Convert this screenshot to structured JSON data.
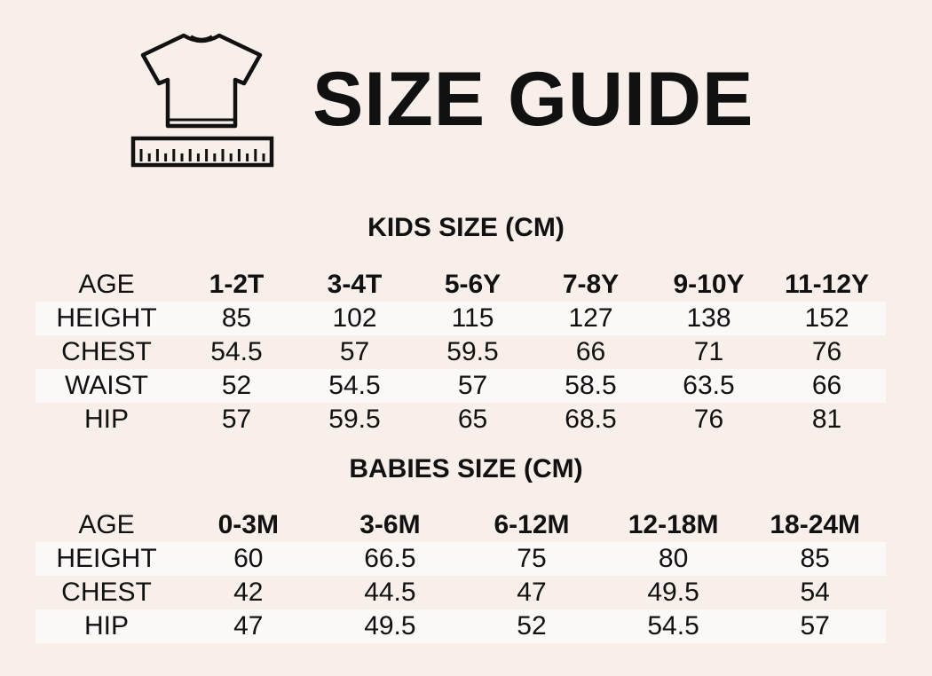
{
  "title": "SIZE GUIDE",
  "icons": {
    "header": "tshirt-with-ruler-icon"
  },
  "colors": {
    "background": "#f8efea",
    "row_shade": "#fbf8f7",
    "text": "#111111"
  },
  "kids": {
    "title": "KIDS SIZE (CM)",
    "header": {
      "label": "AGE",
      "sizes": [
        "1-2T",
        "3-4T",
        "5-6Y",
        "7-8Y",
        "9-10Y",
        "11-12Y"
      ]
    },
    "rows": [
      {
        "label": "HEIGHT",
        "values": [
          "85",
          "102",
          "115",
          "127",
          "138",
          "152"
        ]
      },
      {
        "label": "CHEST",
        "values": [
          "54.5",
          "57",
          "59.5",
          "66",
          "71",
          "76"
        ]
      },
      {
        "label": "WAIST",
        "values": [
          "52",
          "54.5",
          "57",
          "58.5",
          "63.5",
          "66"
        ]
      },
      {
        "label": "HIP",
        "values": [
          "57",
          "59.5",
          "65",
          "68.5",
          "76",
          "81"
        ]
      }
    ]
  },
  "babies": {
    "title": "BABIES SIZE (CM)",
    "header": {
      "label": "AGE",
      "sizes": [
        "0-3M",
        "3-6M",
        "6-12M",
        "12-18M",
        "18-24M"
      ]
    },
    "rows": [
      {
        "label": "HEIGHT",
        "values": [
          "60",
          "66.5",
          "75",
          "80",
          "85"
        ]
      },
      {
        "label": "CHEST",
        "values": [
          "42",
          "44.5",
          "47",
          "49.5",
          "54"
        ]
      },
      {
        "label": "HIP",
        "values": [
          "47",
          "49.5",
          "52",
          "54.5",
          "57"
        ]
      }
    ]
  }
}
